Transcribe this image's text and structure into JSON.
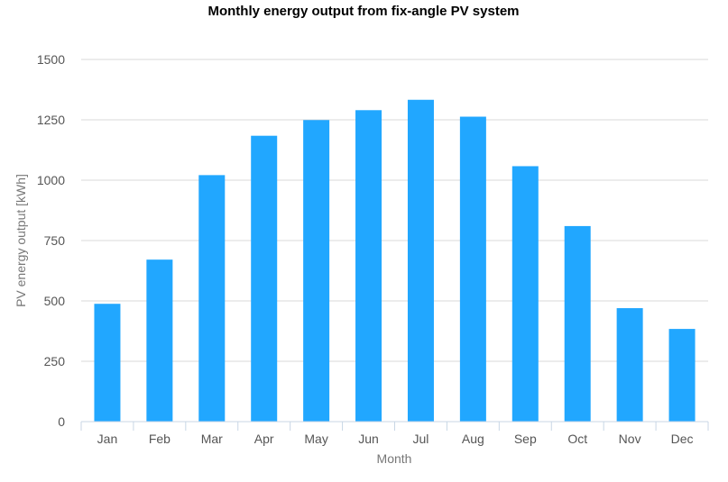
{
  "chart_data": {
    "type": "bar",
    "title": "Monthly energy output from fix-angle PV system",
    "xlabel": "Month",
    "ylabel": "PV energy output [kWh]",
    "categories": [
      "Jan",
      "Feb",
      "Mar",
      "Apr",
      "May",
      "Jun",
      "Jul",
      "Aug",
      "Sep",
      "Oct",
      "Nov",
      "Dec"
    ],
    "values": [
      488,
      671,
      1021,
      1184,
      1249,
      1290,
      1333,
      1263,
      1058,
      810,
      470,
      384
    ],
    "ylim": [
      0,
      1500
    ],
    "yticks": [
      0,
      250,
      500,
      750,
      1000,
      1250,
      1500
    ],
    "grid": true,
    "legend": "none",
    "bar_color": "#21a7ff",
    "grid_color": "#d9d9d9",
    "axis_color": "#c8d6e5"
  }
}
